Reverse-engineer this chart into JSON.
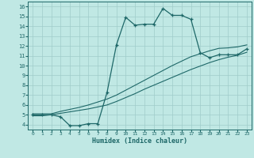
{
  "xlabel": "Humidex (Indice chaleur)",
  "bg_color": "#c0e8e4",
  "grid_color": "#a0ccca",
  "line_color": "#1e6868",
  "xlim": [
    -0.5,
    23.5
  ],
  "ylim": [
    3.5,
    16.5
  ],
  "xticks": [
    0,
    1,
    2,
    3,
    4,
    5,
    6,
    7,
    8,
    9,
    10,
    11,
    12,
    13,
    14,
    15,
    16,
    17,
    18,
    19,
    20,
    21,
    22,
    23
  ],
  "yticks": [
    4,
    5,
    6,
    7,
    8,
    9,
    10,
    11,
    12,
    13,
    14,
    15,
    16
  ],
  "line1_x": [
    0,
    1,
    2,
    3,
    4,
    5,
    6,
    7,
    8,
    9,
    10,
    11,
    12,
    13,
    14,
    15,
    16,
    17,
    18,
    19,
    20,
    21,
    22,
    23
  ],
  "line1_y": [
    5.0,
    5.0,
    5.0,
    4.8,
    3.9,
    3.9,
    4.1,
    4.1,
    7.3,
    12.1,
    14.9,
    14.1,
    14.2,
    14.2,
    15.8,
    15.1,
    15.1,
    14.7,
    11.3,
    10.8,
    11.1,
    11.1,
    11.1,
    11.7
  ],
  "line2_x": [
    0,
    1,
    2,
    3,
    4,
    5,
    6,
    7,
    8,
    9,
    10,
    11,
    12,
    13,
    14,
    15,
    16,
    17,
    18,
    19,
    20,
    21,
    22,
    23
  ],
  "line2_y": [
    4.9,
    4.9,
    5.0,
    5.15,
    5.3,
    5.45,
    5.6,
    5.8,
    6.0,
    6.35,
    6.75,
    7.15,
    7.6,
    8.0,
    8.4,
    8.8,
    9.2,
    9.6,
    9.95,
    10.3,
    10.6,
    10.85,
    11.05,
    11.35
  ],
  "line3_x": [
    0,
    1,
    2,
    3,
    4,
    5,
    6,
    7,
    8,
    9,
    10,
    11,
    12,
    13,
    14,
    15,
    16,
    17,
    18,
    19,
    20,
    21,
    22,
    23
  ],
  "line3_y": [
    5.1,
    5.1,
    5.1,
    5.35,
    5.55,
    5.75,
    6.0,
    6.3,
    6.6,
    7.0,
    7.5,
    8.0,
    8.5,
    9.0,
    9.5,
    10.0,
    10.45,
    10.9,
    11.2,
    11.5,
    11.75,
    11.8,
    11.9,
    12.1
  ]
}
